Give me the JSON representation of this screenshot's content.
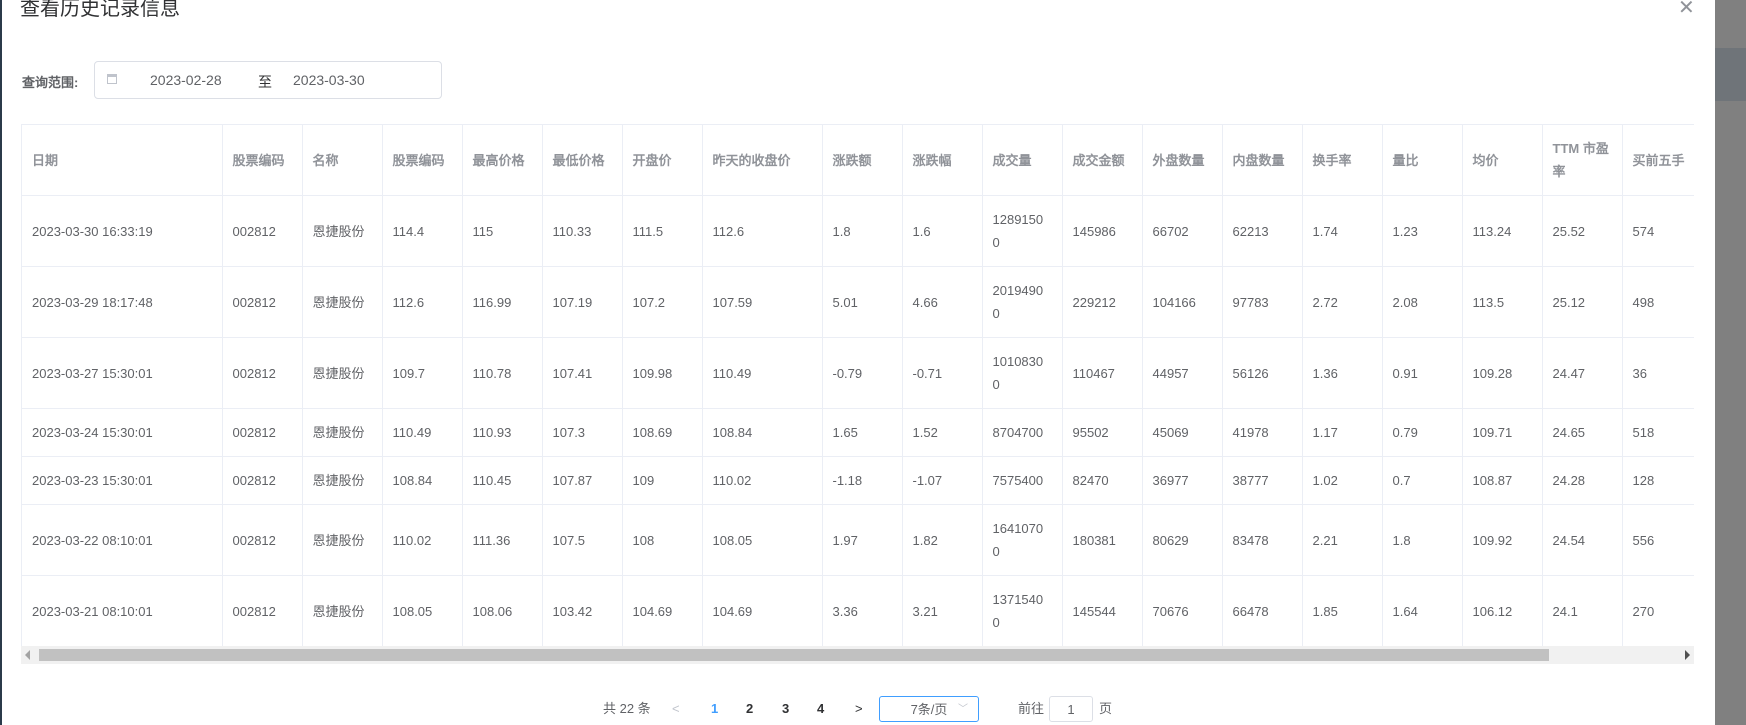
{
  "dialog": {
    "title": "查看历史记录信息",
    "close_icon": "close-icon"
  },
  "filter": {
    "label": "查询范围:",
    "start_date": "2023-02-28",
    "separator": "至",
    "end_date": "2023-03-30",
    "icon": "calendar-icon"
  },
  "table": {
    "columns": [
      "日期",
      "股票编码",
      "名称",
      "股票编码",
      "最高价格",
      "最低价格",
      "开盘价",
      "昨天的收盘价",
      "涨跌额",
      "涨跌幅",
      "成交量",
      "成交金额",
      "外盘数量",
      "内盘数量",
      "换手率",
      "量比",
      "均价",
      "TTM 市盈率",
      "买前五手"
    ],
    "rows": [
      [
        "2023-03-30 16:33:19",
        "002812",
        "恩捷股份",
        "114.4",
        "115",
        "110.33",
        "111.5",
        "112.6",
        "1.8",
        "1.6",
        "12891500",
        "145986",
        "66702",
        "62213",
        "1.74",
        "1.23",
        "113.24",
        "25.52",
        "574"
      ],
      [
        "2023-03-29 18:17:48",
        "002812",
        "恩捷股份",
        "112.6",
        "116.99",
        "107.19",
        "107.2",
        "107.59",
        "5.01",
        "4.66",
        "20194900",
        "229212",
        "104166",
        "97783",
        "2.72",
        "2.08",
        "113.5",
        "25.12",
        "498"
      ],
      [
        "2023-03-27 15:30:01",
        "002812",
        "恩捷股份",
        "109.7",
        "110.78",
        "107.41",
        "109.98",
        "110.49",
        "-0.79",
        "-0.71",
        "10108300",
        "110467",
        "44957",
        "56126",
        "1.36",
        "0.91",
        "109.28",
        "24.47",
        "36"
      ],
      [
        "2023-03-24 15:30:01",
        "002812",
        "恩捷股份",
        "110.49",
        "110.93",
        "107.3",
        "108.69",
        "108.84",
        "1.65",
        "1.52",
        "8704700",
        "95502",
        "45069",
        "41978",
        "1.17",
        "0.79",
        "109.71",
        "24.65",
        "518"
      ],
      [
        "2023-03-23 15:30:01",
        "002812",
        "恩捷股份",
        "108.84",
        "110.45",
        "107.87",
        "109",
        "110.02",
        "-1.18",
        "-1.07",
        "7575400",
        "82470",
        "36977",
        "38777",
        "1.02",
        "0.7",
        "108.87",
        "24.28",
        "128"
      ],
      [
        "2023-03-22 08:10:01",
        "002812",
        "恩捷股份",
        "110.02",
        "111.36",
        "107.5",
        "108",
        "108.05",
        "1.97",
        "1.82",
        "16410700",
        "180381",
        "80629",
        "83478",
        "2.21",
        "1.8",
        "109.92",
        "24.54",
        "556"
      ],
      [
        "2023-03-21 08:10:01",
        "002812",
        "恩捷股份",
        "108.05",
        "108.06",
        "103.42",
        "104.69",
        "104.69",
        "3.36",
        "3.21",
        "13715400",
        "145544",
        "70676",
        "66478",
        "1.85",
        "1.64",
        "106.12",
        "24.1",
        "270"
      ]
    ]
  },
  "pagination": {
    "total": "共 22 条",
    "pages": [
      "1",
      "2",
      "3",
      "4"
    ],
    "current_page": "1",
    "page_size": "7条/页",
    "goto_label": "前往",
    "goto_value": "1",
    "goto_suffix": "页",
    "active_color": "#409eff"
  }
}
